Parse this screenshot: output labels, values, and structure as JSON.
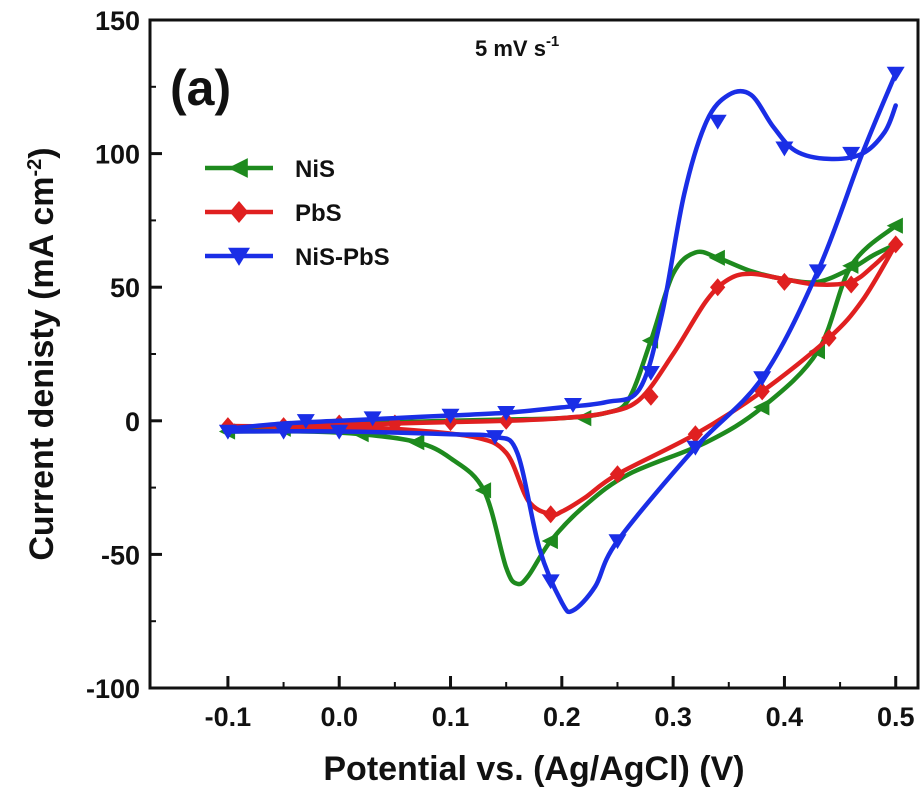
{
  "chart_data": {
    "type": "line",
    "panel_label": "(a)",
    "annotation": {
      "text": "5 mV s",
      "superscript": "-1"
    },
    "xlabel": "Potential vs. (Ag/AgCl) (V)",
    "ylabel": {
      "text": "Current denisty (mA cm",
      "superscript": "-2",
      "suffix": ")"
    },
    "xlim": [
      -0.17,
      0.52
    ],
    "ylim": [
      -100,
      150
    ],
    "xticks": [
      -0.1,
      0.0,
      0.1,
      0.2,
      0.3,
      0.4,
      0.5
    ],
    "xtick_labels": [
      "-0.1",
      "0.0",
      "0.1",
      "0.2",
      "0.3",
      "0.4",
      "0.5"
    ],
    "yticks": [
      -100,
      -50,
      0,
      50,
      100,
      150
    ],
    "ytick_labels": [
      "-100",
      "-50",
      "0",
      "50",
      "100",
      "150"
    ],
    "legend_position": "upper-left",
    "series": [
      {
        "name": "NiS",
        "color": "#1e8a1e",
        "marker": "triangle-left",
        "forward": [
          [
            -0.1,
            -3
          ],
          [
            -0.05,
            -2
          ],
          [
            0.0,
            -1
          ],
          [
            0.05,
            -0.5
          ],
          [
            0.1,
            0
          ],
          [
            0.15,
            0.5
          ],
          [
            0.2,
            1
          ],
          [
            0.24,
            3
          ],
          [
            0.26,
            8
          ],
          [
            0.28,
            30
          ],
          [
            0.3,
            55
          ],
          [
            0.32,
            63
          ],
          [
            0.34,
            61
          ],
          [
            0.37,
            56
          ],
          [
            0.4,
            53
          ],
          [
            0.43,
            52
          ],
          [
            0.46,
            57
          ],
          [
            0.48,
            62
          ],
          [
            0.5,
            66
          ]
        ],
        "reverse": [
          [
            0.5,
            73
          ],
          [
            0.46,
            58
          ],
          [
            0.43,
            26
          ],
          [
            0.38,
            5
          ],
          [
            0.33,
            -8
          ],
          [
            0.26,
            -20
          ],
          [
            0.22,
            -32
          ],
          [
            0.19,
            -45
          ],
          [
            0.17,
            -58
          ],
          [
            0.16,
            -61
          ],
          [
            0.15,
            -55
          ],
          [
            0.13,
            -26
          ],
          [
            0.1,
            -14
          ],
          [
            0.07,
            -8
          ],
          [
            0.02,
            -5
          ],
          [
            -0.03,
            -4
          ],
          [
            -0.1,
            -4
          ]
        ],
        "marker_points": [
          [
            -0.1,
            -4
          ],
          [
            -0.05,
            -3
          ],
          [
            0.02,
            -5
          ],
          [
            0.07,
            -8
          ],
          [
            0.13,
            -26
          ],
          [
            0.19,
            -45
          ],
          [
            0.22,
            1
          ],
          [
            0.28,
            30
          ],
          [
            0.34,
            61
          ],
          [
            0.38,
            5
          ],
          [
            0.43,
            26
          ],
          [
            0.46,
            58
          ],
          [
            0.5,
            73
          ]
        ]
      },
      {
        "name": "PbS",
        "color": "#e02020",
        "marker": "diamond",
        "forward": [
          [
            -0.1,
            -2
          ],
          [
            -0.05,
            -2
          ],
          [
            0.0,
            -1.5
          ],
          [
            0.05,
            -1
          ],
          [
            0.1,
            -0.5
          ],
          [
            0.15,
            0
          ],
          [
            0.2,
            1
          ],
          [
            0.24,
            3
          ],
          [
            0.27,
            8
          ],
          [
            0.3,
            25
          ],
          [
            0.33,
            45
          ],
          [
            0.35,
            53
          ],
          [
            0.37,
            55
          ],
          [
            0.4,
            53
          ],
          [
            0.43,
            51
          ],
          [
            0.46,
            52
          ],
          [
            0.48,
            58
          ],
          [
            0.5,
            66
          ]
        ],
        "reverse": [
          [
            0.5,
            66
          ],
          [
            0.47,
            45
          ],
          [
            0.44,
            31
          ],
          [
            0.38,
            11
          ],
          [
            0.32,
            -5
          ],
          [
            0.25,
            -20
          ],
          [
            0.22,
            -29
          ],
          [
            0.2,
            -34
          ],
          [
            0.19,
            -35
          ],
          [
            0.17,
            -30
          ],
          [
            0.15,
            -12
          ],
          [
            0.12,
            -6
          ],
          [
            0.05,
            -3
          ],
          [
            0.0,
            -2.5
          ],
          [
            -0.1,
            -2
          ]
        ],
        "marker_points": [
          [
            -0.1,
            -2
          ],
          [
            -0.05,
            -2
          ],
          [
            0.0,
            -1
          ],
          [
            0.05,
            -1
          ],
          [
            0.1,
            -0.5
          ],
          [
            0.15,
            0
          ],
          [
            0.28,
            9
          ],
          [
            0.34,
            50
          ],
          [
            0.4,
            52
          ],
          [
            0.46,
            51
          ],
          [
            0.5,
            66
          ],
          [
            0.44,
            31
          ],
          [
            0.38,
            11
          ],
          [
            0.32,
            -5
          ],
          [
            0.25,
            -20
          ],
          [
            0.19,
            -35
          ]
        ]
      },
      {
        "name": "NiS-PbS",
        "color": "#1a2ee6",
        "marker": "triangle-down",
        "forward": [
          [
            -0.1,
            -3
          ],
          [
            -0.05,
            -1
          ],
          [
            0.0,
            0
          ],
          [
            0.05,
            1
          ],
          [
            0.1,
            2
          ],
          [
            0.15,
            3
          ],
          [
            0.2,
            5
          ],
          [
            0.24,
            7
          ],
          [
            0.27,
            12
          ],
          [
            0.29,
            40
          ],
          [
            0.31,
            85
          ],
          [
            0.33,
            112
          ],
          [
            0.35,
            122
          ],
          [
            0.37,
            122
          ],
          [
            0.39,
            110
          ],
          [
            0.41,
            101
          ],
          [
            0.44,
            98
          ],
          [
            0.47,
            100
          ],
          [
            0.49,
            108
          ],
          [
            0.5,
            118
          ]
        ],
        "reverse": [
          [
            0.5,
            130
          ],
          [
            0.47,
            100
          ],
          [
            0.43,
            56
          ],
          [
            0.38,
            16
          ],
          [
            0.32,
            -10
          ],
          [
            0.25,
            -45
          ],
          [
            0.23,
            -62
          ],
          [
            0.21,
            -71
          ],
          [
            0.2,
            -68
          ],
          [
            0.18,
            -48
          ],
          [
            0.16,
            -12
          ],
          [
            0.14,
            -6
          ],
          [
            0.1,
            -5
          ],
          [
            0.0,
            -4
          ],
          [
            -0.1,
            -4
          ]
        ],
        "marker_points": [
          [
            -0.1,
            -4
          ],
          [
            -0.05,
            -4
          ],
          [
            -0.03,
            0
          ],
          [
            0.03,
            1
          ],
          [
            0.1,
            2
          ],
          [
            0.15,
            3
          ],
          [
            0.21,
            6
          ],
          [
            0.28,
            18
          ],
          [
            0.34,
            112
          ],
          [
            0.4,
            102
          ],
          [
            0.46,
            100
          ],
          [
            0.5,
            130
          ],
          [
            0.43,
            56
          ],
          [
            0.38,
            16
          ],
          [
            0.32,
            -10
          ],
          [
            0.25,
            -45
          ],
          [
            0.19,
            -60
          ],
          [
            0.14,
            -6
          ],
          [
            0.0,
            -4
          ]
        ]
      }
    ]
  }
}
